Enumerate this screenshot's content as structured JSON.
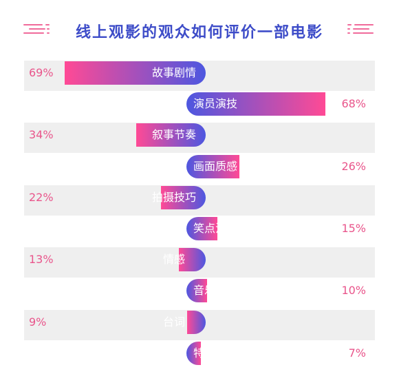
{
  "chart_data": {
    "type": "bar",
    "title": "线上观影的观众如何评价一部电影",
    "categories": [
      "故事剧情",
      "演员演技",
      "叙事节奏",
      "画面质感",
      "拍摄技巧",
      "笑点泪点",
      "情感",
      "音乐音效",
      "台词",
      "特效"
    ],
    "values": [
      69,
      68,
      34,
      26,
      22,
      15,
      13,
      10,
      9,
      7
    ],
    "value_labels": [
      "69%",
      "68%",
      "34%",
      "26%",
      "22%",
      "15%",
      "13%",
      "10%",
      "9%",
      "7%"
    ],
    "ylim": [
      0,
      100
    ],
    "grid": false,
    "legend": "none",
    "layout": "alternating butterfly",
    "colors": {
      "title": "#3d4cc8",
      "bar_start": "#4d57e0",
      "bar_end": "#ff4a95",
      "value_text": "#e9558b",
      "stripe": "#efefef"
    }
  }
}
